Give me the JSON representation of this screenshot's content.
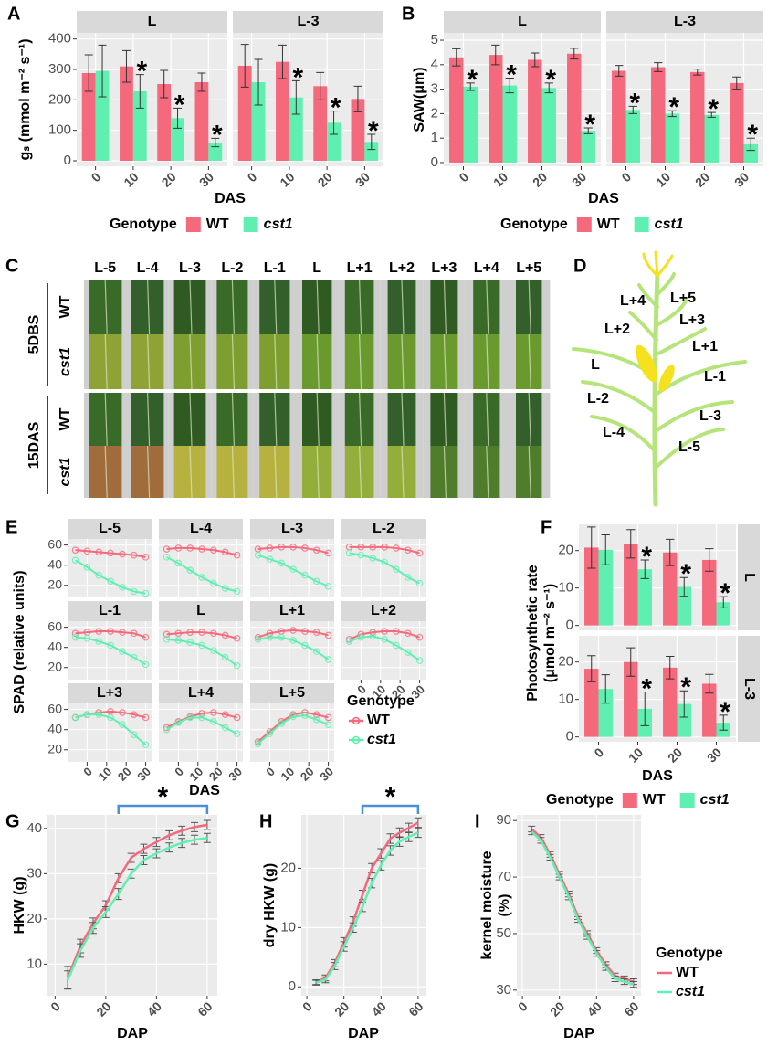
{
  "chart_data": [
    {
      "panel": "A",
      "type": "bar",
      "ylabel": "gₛ (mmol m⁻² s⁻¹)",
      "xlabel": "DAS",
      "categories": [
        "0",
        "10",
        "20",
        "30"
      ],
      "ylim": [
        -18,
        420
      ],
      "yticks": [
        0,
        100,
        200,
        300,
        400
      ],
      "legend_title": "Genotype",
      "series": [
        {
          "name": "WT",
          "color": "#f4697b"
        },
        {
          "name": "cst1",
          "color": "#5ff0b1"
        }
      ],
      "facets": [
        {
          "name": "L",
          "values": [
            [
              288,
              310,
              252,
              258
            ],
            [
              295,
              228,
              140,
              60
            ]
          ],
          "errors": [
            [
              60,
              52,
              45,
              30
            ],
            [
              85,
              55,
              33,
              14
            ]
          ],
          "stars": [
            [
              null,
              null,
              null,
              null
            ],
            [
              null,
              "*",
              "*",
              "*"
            ]
          ]
        },
        {
          "name": "L-3",
          "values": [
            [
              312,
              325,
              245,
              203
            ],
            [
              258,
              208,
              125,
              62
            ]
          ],
          "errors": [
            [
              70,
              55,
              45,
              42
            ],
            [
              75,
              55,
              38,
              25
            ]
          ],
          "stars": [
            [
              null,
              null,
              null,
              null
            ],
            [
              null,
              "*",
              "*",
              "*"
            ]
          ]
        }
      ]
    },
    {
      "panel": "B",
      "type": "bar",
      "ylabel": "SAW(μm)",
      "xlabel": "DAS",
      "categories": [
        "0",
        "10",
        "20",
        "30"
      ],
      "ylim": [
        -0.15,
        5.3
      ],
      "yticks": [
        0,
        1,
        2,
        3,
        4,
        5
      ],
      "legend_title": "Genotype",
      "series": [
        {
          "name": "WT",
          "color": "#f4697b"
        },
        {
          "name": "cst1",
          "color": "#5ff0b1"
        }
      ],
      "facets": [
        {
          "name": "L",
          "values": [
            [
              4.3,
              4.4,
              4.2,
              4.45
            ],
            [
              3.1,
              3.15,
              3.05,
              1.3
            ]
          ],
          "errors": [
            [
              0.35,
              0.4,
              0.28,
              0.22
            ],
            [
              0.15,
              0.3,
              0.2,
              0.12
            ]
          ],
          "stars": [
            [
              null,
              null,
              null,
              null
            ],
            [
              "*",
              "*",
              "*",
              "*"
            ]
          ]
        },
        {
          "name": "L-3",
          "values": [
            [
              3.75,
              3.9,
              3.7,
              3.25
            ],
            [
              2.15,
              2.0,
              1.95,
              0.75
            ]
          ],
          "errors": [
            [
              0.22,
              0.18,
              0.12,
              0.25
            ],
            [
              0.15,
              0.12,
              0.1,
              0.25
            ]
          ],
          "stars": [
            [
              null,
              null,
              null,
              null
            ],
            [
              "*",
              "*",
              "*",
              "*"
            ]
          ]
        }
      ]
    },
    {
      "panel": "E",
      "type": "line",
      "ylabel": "SPAD (relative units)",
      "xlabel": "DAS",
      "x": [
        -6,
        0,
        6,
        12,
        18,
        24,
        30
      ],
      "xlim": [
        -10,
        33
      ],
      "xticks": [
        0,
        10,
        20,
        30
      ],
      "ylim": [
        8,
        66
      ],
      "yticks": [
        20,
        40,
        60
      ],
      "legend_title": "Genotype",
      "series": [
        {
          "name": "WT",
          "color": "#f4697b"
        },
        {
          "name": "cst1",
          "color": "#5ff0b1"
        }
      ],
      "facets": [
        {
          "name": "L-5",
          "values": [
            [
              55,
              54,
              53,
              52,
              51,
              50,
              48
            ],
            [
              45,
              38,
              30,
              24,
              18,
              14,
              12
            ]
          ]
        },
        {
          "name": "L-4",
          "values": [
            [
              56,
              57,
              57,
              56,
              55,
              53,
              50
            ],
            [
              48,
              42,
              35,
              28,
              22,
              17,
              14
            ]
          ]
        },
        {
          "name": "L-3",
          "values": [
            [
              56,
              57,
              58,
              58,
              57,
              55,
              52
            ],
            [
              50,
              46,
              42,
              36,
              30,
              24,
              19
            ]
          ]
        },
        {
          "name": "L-2",
          "values": [
            [
              58,
              58,
              58,
              58,
              57,
              55,
              52
            ],
            [
              52,
              50,
              47,
              43,
              36,
              28,
              22
            ]
          ]
        },
        {
          "name": "L-1",
          "values": [
            [
              54,
              55,
              56,
              56,
              55,
              54,
              50
            ],
            [
              50,
              49,
              46,
              42,
              36,
              30,
              23
            ]
          ]
        },
        {
          "name": "L",
          "values": [
            [
              53,
              54,
              55,
              55,
              54,
              52,
              49
            ],
            [
              48,
              47,
              45,
              42,
              37,
              30,
              22
            ]
          ]
        },
        {
          "name": "L+1",
          "values": [
            [
              50,
              54,
              56,
              57,
              56,
              55,
              52
            ],
            [
              48,
              50,
              50,
              47,
              42,
              36,
              28
            ]
          ]
        },
        {
          "name": "L+2",
          "values": [
            [
              48,
              53,
              55,
              56,
              56,
              54,
              50
            ],
            [
              46,
              50,
              51,
              48,
              42,
              35,
              27
            ]
          ]
        },
        {
          "name": "L+3",
          "values": [
            [
              52,
              55,
              57,
              58,
              57,
              55,
              52
            ],
            [
              52,
              55,
              55,
              52,
              45,
              35,
              25
            ]
          ]
        },
        {
          "name": "L+4",
          "values": [
            [
              42,
              48,
              53,
              56,
              57,
              55,
              52
            ],
            [
              40,
              47,
              52,
              52,
              48,
              42,
              36
            ]
          ]
        },
        {
          "name": "L+5",
          "values": [
            [
              28,
              38,
              48,
              55,
              57,
              55,
              52
            ],
            [
              26,
              36,
              46,
              53,
              54,
              50,
              45
            ]
          ]
        }
      ]
    },
    {
      "panel": "F",
      "type": "bar",
      "ylabel": [
        "Photosynthetic rate",
        "(μmol m⁻² s⁻¹)"
      ],
      "xlabel": "DAS",
      "categories": [
        "0",
        "10",
        "20",
        "30"
      ],
      "ylim": [
        -1.3,
        27
      ],
      "yticks": [
        0,
        10,
        20
      ],
      "legend_title": "Genotype",
      "series": [
        {
          "name": "WT",
          "color": "#f4697b"
        },
        {
          "name": "cst1",
          "color": "#5ff0b1"
        }
      ],
      "facets": [
        {
          "name": "L",
          "values": [
            [
              20.8,
              21.8,
              19.5,
              17.5
            ],
            [
              20.2,
              15,
              10.3,
              6.2
            ]
          ],
          "errors": [
            [
              5.5,
              3.8,
              3.5,
              3
            ],
            [
              4,
              2.5,
              2.5,
              1.5
            ]
          ],
          "stars": [
            [
              null,
              null,
              null,
              null
            ],
            [
              null,
              "*",
              "*",
              "*"
            ]
          ]
        },
        {
          "name": "L-3",
          "values": [
            [
              18.2,
              20,
              18.5,
              14.2
            ],
            [
              12.8,
              7.5,
              8.8,
              3.8
            ]
          ],
          "errors": [
            [
              3.5,
              3.8,
              3,
              2.5
            ],
            [
              3.8,
              4.5,
              3.5,
              2
            ]
          ],
          "stars": [
            [
              null,
              null,
              null,
              null
            ],
            [
              null,
              "*",
              "*",
              "*"
            ]
          ]
        }
      ]
    },
    {
      "panel": "G",
      "type": "line",
      "ylabel": "HKW (g)",
      "xlabel": "DAP",
      "x": [
        5,
        10,
        15,
        20,
        25,
        30,
        35,
        40,
        45,
        50,
        55,
        60
      ],
      "xlim": [
        -3,
        64
      ],
      "xticks": [
        0,
        20,
        40,
        60
      ],
      "ylim": [
        3,
        43
      ],
      "yticks": [
        10,
        20,
        30,
        40
      ],
      "series": [
        {
          "name": "WT",
          "color": "#f4697b",
          "values": [
            7,
            14,
            19,
            23,
            29,
            33.5,
            35.5,
            37,
            38.5,
            39.5,
            40.3,
            40.8
          ],
          "errors": [
            2.5,
            1.5,
            1.2,
            1,
            1,
            1,
            1,
            1,
            1,
            1,
            1,
            1
          ]
        },
        {
          "name": "cst1",
          "color": "#5ff0b1",
          "values": [
            6.5,
            13,
            18,
            21.5,
            25.5,
            30,
            33,
            34.5,
            35.8,
            36.8,
            37.5,
            37.9
          ],
          "errors": [
            2,
            1.5,
            1.2,
            1.2,
            1.2,
            1,
            1,
            1,
            1,
            1,
            1,
            1
          ]
        }
      ],
      "bracket": {
        "x": [
          25,
          60
        ],
        "label": "*"
      }
    },
    {
      "panel": "H",
      "type": "line",
      "ylabel": "dry HKW (g)",
      "xlabel": "DAP",
      "x": [
        5,
        10,
        15,
        20,
        25,
        30,
        35,
        40,
        45,
        50,
        55,
        60
      ],
      "xlim": [
        -3,
        64
      ],
      "xticks": [
        0,
        20,
        40,
        60
      ],
      "ylim": [
        -1.5,
        29
      ],
      "yticks": [
        0,
        10,
        20
      ],
      "series": [
        {
          "name": "WT",
          "color": "#f4697b",
          "values": [
            0.8,
            1.5,
            4,
            7.5,
            11,
            15.5,
            20,
            22.5,
            25,
            26,
            26.8,
            27.7
          ],
          "errors": [
            0.4,
            0.5,
            0.6,
            0.8,
            0.8,
            0.8,
            0.8,
            0.8,
            0.8,
            0.8,
            0.8,
            0.8
          ]
        },
        {
          "name": "cst1",
          "color": "#5ff0b1",
          "values": [
            0.7,
            1.2,
            3.5,
            6.8,
            10,
            13.5,
            17.5,
            20.5,
            23,
            24.5,
            25.3,
            26
          ],
          "errors": [
            0.4,
            0.5,
            0.6,
            0.8,
            0.8,
            0.8,
            0.8,
            0.8,
            0.8,
            0.8,
            0.8,
            0.8
          ]
        }
      ],
      "bracket": {
        "x": [
          30,
          60
        ],
        "label": "*"
      }
    },
    {
      "panel": "I",
      "type": "line",
      "ylabel": [
        "kernel moisture",
        "(%)"
      ],
      "xlabel": "DAP",
      "x": [
        5,
        10,
        15,
        20,
        25,
        30,
        35,
        40,
        45,
        50,
        55,
        60
      ],
      "xlim": [
        -3,
        64
      ],
      "xticks": [
        0,
        20,
        40,
        60
      ],
      "ylim": [
        28,
        92
      ],
      "yticks": [
        30,
        50,
        70,
        90
      ],
      "legend_title": "Genotype",
      "series": [
        {
          "name": "WT",
          "color": "#f4697b",
          "values": [
            87,
            84,
            78,
            71,
            64,
            56,
            50,
            44,
            39,
            35,
            34,
            33
          ],
          "errors": [
            1,
            1,
            1,
            1,
            1,
            1,
            1,
            1,
            1,
            1,
            1,
            1
          ]
        },
        {
          "name": "cst1",
          "color": "#5ff0b1",
          "values": [
            86,
            83,
            77,
            70,
            63,
            55,
            49,
            43,
            38,
            34,
            33,
            32
          ],
          "errors": [
            1,
            1,
            1,
            1,
            1,
            1,
            1,
            1,
            1,
            1,
            1,
            1
          ]
        }
      ]
    }
  ],
  "photo_panel": {
    "panel": "C",
    "columns": [
      "L-5",
      "L-4",
      "L-3",
      "L-2",
      "L-1",
      "L",
      "L+1",
      "L+2",
      "L+3",
      "L+4",
      "L+5"
    ],
    "groups": [
      {
        "name": "5DBS",
        "rows": [
          "WT",
          "cst1"
        ]
      },
      {
        "name": "15DAS",
        "rows": [
          "WT",
          "cst1"
        ]
      }
    ]
  },
  "diagram": {
    "panel": "D",
    "leaves": [
      "L+4",
      "L+5",
      "L+2",
      "L+3",
      "L+1",
      "L",
      "L-1",
      "L-2",
      "L-3",
      "L-4",
      "L-5"
    ]
  }
}
